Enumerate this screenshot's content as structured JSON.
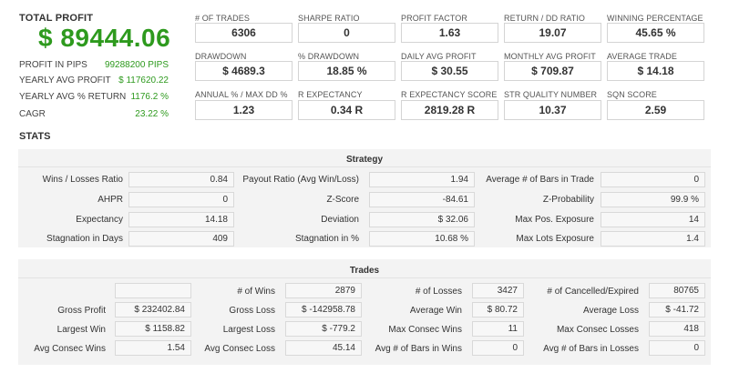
{
  "total_profit": {
    "title": "TOTAL PROFIT",
    "value": "$ 89444.06",
    "rows": [
      {
        "label": "PROFIT IN PIPS",
        "value": "99288200 PIPS"
      },
      {
        "label": "YEARLY AVG PROFIT",
        "value": "$ 117620.22"
      },
      {
        "label": "YEARLY AVG % RETURN",
        "value": "1176.2 %"
      },
      {
        "label": "CAGR",
        "value": "23.22 %"
      }
    ]
  },
  "metrics": [
    {
      "label": "# OF TRADES",
      "value": "6306"
    },
    {
      "label": "SHARPE RATIO",
      "value": "0"
    },
    {
      "label": "PROFIT FACTOR",
      "value": "1.63"
    },
    {
      "label": "RETURN / DD RATIO",
      "value": "19.07"
    },
    {
      "label": "WINNING PERCENTAGE",
      "value": "45.65 %"
    },
    {
      "label": "DRAWDOWN",
      "value": "$ 4689.3"
    },
    {
      "label": "% DRAWDOWN",
      "value": "18.85 %"
    },
    {
      "label": "DAILY AVG PROFIT",
      "value": "$ 30.55"
    },
    {
      "label": "MONTHLY AVG PROFIT",
      "value": "$ 709.87"
    },
    {
      "label": "AVERAGE TRADE",
      "value": "$ 14.18"
    },
    {
      "label": "ANNUAL % / MAX DD %",
      "value": "1.23"
    },
    {
      "label": "R EXPECTANCY",
      "value": "0.34 R"
    },
    {
      "label": "R EXPECTANCY SCORE",
      "value": "2819.28 R"
    },
    {
      "label": "STR QUALITY NUMBER",
      "value": "10.37"
    },
    {
      "label": "SQN SCORE",
      "value": "2.59"
    }
  ],
  "stats_title": "STATS",
  "strategy": {
    "title": "Strategy",
    "rows": [
      [
        {
          "label": "Wins / Losses Ratio",
          "value": "0.84"
        },
        {
          "label": "Payout Ratio (Avg Win/Loss)",
          "value": "1.94"
        },
        {
          "label": "Average # of Bars in Trade",
          "value": "0"
        }
      ],
      [
        {
          "label": "AHPR",
          "value": "0"
        },
        {
          "label": "Z-Score",
          "value": "-84.61"
        },
        {
          "label": "Z-Probability",
          "value": "99.9 %"
        }
      ],
      [
        {
          "label": "Expectancy",
          "value": "14.18"
        },
        {
          "label": "Deviation",
          "value": "$ 32.06"
        },
        {
          "label": "Max Pos. Exposure",
          "value": "14"
        }
      ],
      [
        {
          "label": "Stagnation in Days",
          "value": "409"
        },
        {
          "label": "Stagnation in %",
          "value": "10.68 %"
        },
        {
          "label": "Max Lots Exposure",
          "value": "1.4"
        }
      ]
    ]
  },
  "trades": {
    "title": "Trades",
    "rows": [
      [
        {
          "label": "",
          "value": ""
        },
        {
          "label": "# of Wins",
          "value": "2879"
        },
        {
          "label": "# of Losses",
          "value": "3427"
        },
        {
          "label": "# of Cancelled/Expired",
          "value": "80765"
        }
      ],
      [
        {
          "label": "Gross Profit",
          "value": "$ 232402.84"
        },
        {
          "label": "Gross Loss",
          "value": "$ -142958.78"
        },
        {
          "label": "Average Win",
          "value": "$ 80.72"
        },
        {
          "label": "Average Loss",
          "value": "$ -41.72"
        }
      ],
      [
        {
          "label": "Largest Win",
          "value": "$ 1158.82"
        },
        {
          "label": "Largest Loss",
          "value": "$ -779.2"
        },
        {
          "label": "Max Consec Wins",
          "value": "11"
        },
        {
          "label": "Max Consec Losses",
          "value": "418"
        }
      ],
      [
        {
          "label": "Avg Consec Wins",
          "value": "1.54"
        },
        {
          "label": "Avg Consec Loss",
          "value": "45.14"
        },
        {
          "label": "Avg # of Bars in Wins",
          "value": "0"
        },
        {
          "label": "Avg # of Bars in Losses",
          "value": "0"
        }
      ]
    ]
  }
}
